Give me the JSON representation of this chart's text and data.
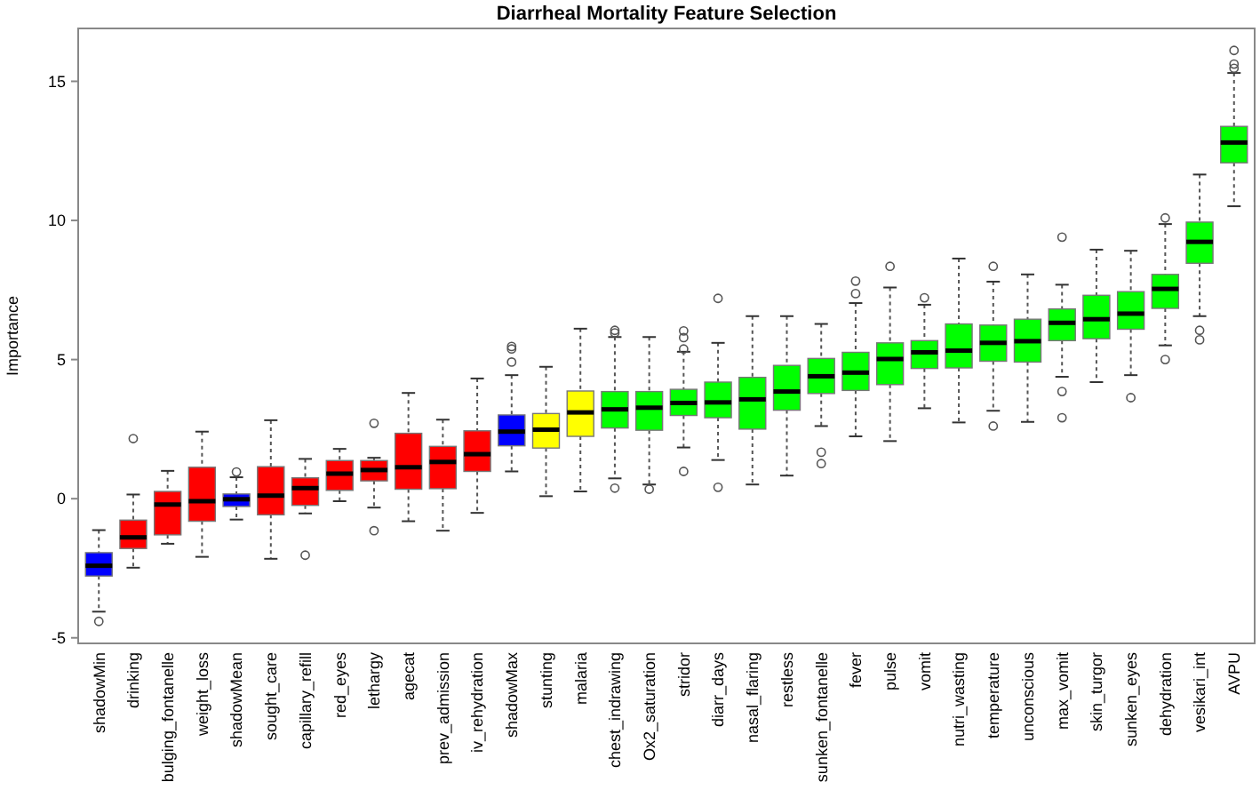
{
  "chart_data": {
    "type": "box",
    "title": "Diarrheal Mortality Feature Selection",
    "ylabel": "Importance",
    "categories": [
      "shadowMin",
      "drinking",
      "bulging_fontanelle",
      "weight_loss",
      "shadowMean",
      "sought_care",
      "capillary_refill",
      "red_eyes",
      "lethargy",
      "agecat",
      "prev_admission",
      "iv_rehydration",
      "shadowMax",
      "stunting",
      "malaria",
      "chest_indrawing",
      "Ox2_saturation",
      "stridor",
      "diarr_days",
      "nasal_flaring",
      "restless",
      "sunken_fontanelle",
      "fever",
      "pulse",
      "vomit",
      "nutri_wasting",
      "temperature",
      "unconscious",
      "max_vomit",
      "skin_turgor",
      "sunken_eyes",
      "dehydration",
      "vesikari_int",
      "AVPU"
    ],
    "colors": [
      "#0000ff",
      "#ff0000",
      "#ff0000",
      "#ff0000",
      "#0000ff",
      "#ff0000",
      "#ff0000",
      "#ff0000",
      "#ff0000",
      "#ff0000",
      "#ff0000",
      "#ff0000",
      "#0000ff",
      "#ffff00",
      "#ffff00",
      "#00ff00",
      "#00ff00",
      "#00ff00",
      "#00ff00",
      "#00ff00",
      "#00ff00",
      "#00ff00",
      "#00ff00",
      "#00ff00",
      "#00ff00",
      "#00ff00",
      "#00ff00",
      "#00ff00",
      "#00ff00",
      "#00ff00",
      "#00ff00",
      "#00ff00",
      "#00ff00",
      "#00ff00"
    ],
    "boxes": [
      {
        "low": -4.06,
        "q1": -2.78,
        "median": -2.41,
        "q3": -1.94,
        "high": -1.13,
        "outliers": [
          -4.41
        ]
      },
      {
        "low": -2.48,
        "q1": -1.79,
        "median": -1.39,
        "q3": -0.77,
        "high": 0.15,
        "outliers": [
          2.16
        ]
      },
      {
        "low": -1.62,
        "q1": -1.3,
        "median": -0.21,
        "q3": 0.26,
        "high": 1.0
      },
      {
        "low": -2.09,
        "q1": -0.81,
        "median": -0.09,
        "q3": 1.13,
        "high": 2.41
      },
      {
        "low": -0.75,
        "q1": -0.28,
        "median": -0.02,
        "q3": 0.17,
        "high": 0.77,
        "outliers": [
          0.96
        ]
      },
      {
        "low": -2.16,
        "q1": -0.58,
        "median": 0.11,
        "q3": 1.15,
        "high": 2.82
      },
      {
        "low": -0.53,
        "q1": -0.24,
        "median": 0.38,
        "q3": 0.75,
        "high": 1.43,
        "outliers": [
          -2.03
        ]
      },
      {
        "low": -0.09,
        "q1": 0.3,
        "median": 0.9,
        "q3": 1.37,
        "high": 1.79
      },
      {
        "low": -0.32,
        "q1": 0.64,
        "median": 1.03,
        "q3": 1.37,
        "high": 1.47,
        "outliers": [
          2.71,
          -1.15
        ]
      },
      {
        "low": -0.81,
        "q1": 0.34,
        "median": 1.13,
        "q3": 2.35,
        "high": 3.8
      },
      {
        "low": -1.15,
        "q1": 0.36,
        "median": 1.32,
        "q3": 1.88,
        "high": 2.84
      },
      {
        "low": -0.51,
        "q1": 0.98,
        "median": 1.6,
        "q3": 2.44,
        "high": 4.32
      },
      {
        "low": 0.98,
        "q1": 1.9,
        "median": 2.41,
        "q3": 3.01,
        "high": 4.44,
        "outliers": [
          4.91,
          5.38,
          5.47
        ]
      },
      {
        "low": 0.09,
        "q1": 1.82,
        "median": 2.48,
        "q3": 3.06,
        "high": 4.74
      },
      {
        "low": 0.26,
        "q1": 2.24,
        "median": 3.1,
        "q3": 3.87,
        "high": 6.11
      },
      {
        "low": 0.73,
        "q1": 2.54,
        "median": 3.21,
        "q3": 3.85,
        "high": 5.81,
        "outliers": [
          5.96,
          6.05,
          0.38
        ]
      },
      {
        "low": 0.51,
        "q1": 2.46,
        "median": 3.27,
        "q3": 3.85,
        "high": 5.81,
        "outliers": [
          0.34
        ]
      },
      {
        "low": 1.84,
        "q1": 2.99,
        "median": 3.44,
        "q3": 3.93,
        "high": 5.28,
        "outliers": [
          6.03,
          5.79,
          5.38,
          0.98
        ]
      },
      {
        "low": 1.39,
        "q1": 2.91,
        "median": 3.46,
        "q3": 4.19,
        "high": 5.6,
        "outliers": [
          7.2,
          0.41
        ]
      },
      {
        "low": 0.51,
        "q1": 2.5,
        "median": 3.57,
        "q3": 4.36,
        "high": 6.56
      },
      {
        "low": 0.83,
        "q1": 3.18,
        "median": 3.85,
        "q3": 4.79,
        "high": 6.56
      },
      {
        "low": 2.61,
        "q1": 3.78,
        "median": 4.4,
        "q3": 5.04,
        "high": 6.28,
        "outliers": [
          1.67,
          1.26
        ]
      },
      {
        "low": 2.24,
        "q1": 3.89,
        "median": 4.53,
        "q3": 5.26,
        "high": 7.03,
        "outliers": [
          7.82,
          7.37
        ]
      },
      {
        "low": 2.07,
        "q1": 4.1,
        "median": 5.02,
        "q3": 5.6,
        "high": 7.59,
        "outliers": [
          8.35
        ]
      },
      {
        "low": 3.25,
        "q1": 4.68,
        "median": 5.26,
        "q3": 5.68,
        "high": 6.97,
        "outliers": [
          7.22
        ]
      },
      {
        "low": 2.74,
        "q1": 4.7,
        "median": 5.32,
        "q3": 6.28,
        "high": 8.63
      },
      {
        "low": 3.16,
        "q1": 4.94,
        "median": 5.6,
        "q3": 6.24,
        "high": 7.8,
        "outliers": [
          8.35,
          2.61
        ]
      },
      {
        "low": 2.76,
        "q1": 4.91,
        "median": 5.66,
        "q3": 6.45,
        "high": 8.06
      },
      {
        "low": 4.38,
        "q1": 5.68,
        "median": 6.32,
        "q3": 6.82,
        "high": 7.69,
        "outliers": [
          9.4,
          3.85,
          2.91
        ]
      },
      {
        "low": 4.19,
        "q1": 5.75,
        "median": 6.45,
        "q3": 7.31,
        "high": 8.95
      },
      {
        "low": 4.44,
        "q1": 6.09,
        "median": 6.65,
        "q3": 7.44,
        "high": 8.91,
        "outliers": [
          3.63
        ]
      },
      {
        "low": 5.51,
        "q1": 6.84,
        "median": 7.54,
        "q3": 8.06,
        "high": 9.87,
        "outliers": [
          10.09,
          5.0
        ]
      },
      {
        "low": 6.56,
        "q1": 8.46,
        "median": 9.23,
        "q3": 9.94,
        "high": 11.65,
        "outliers": [
          6.05,
          5.71
        ]
      },
      {
        "low": 10.51,
        "q1": 12.07,
        "median": 12.8,
        "q3": 13.38,
        "high": 15.3,
        "outliers": [
          16.11,
          15.62,
          15.47
        ]
      }
    ],
    "ylim": [
      -5.2,
      16.9
    ],
    "yticks": [
      -5,
      0,
      5,
      10,
      15
    ]
  }
}
